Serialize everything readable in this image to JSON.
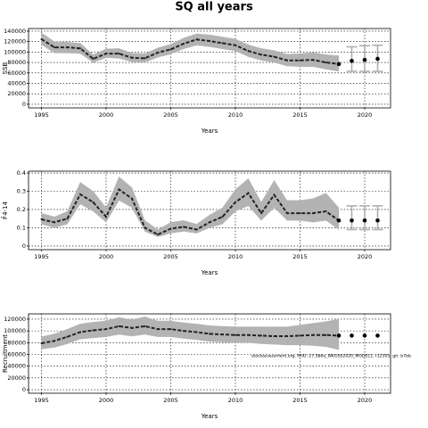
{
  "chart_data": [
    {
      "type": "line",
      "title": "SQ all years",
      "xlabel": "Years",
      "ylabel": "SSB",
      "x": [
        1995,
        1996,
        1997,
        1998,
        1999,
        2000,
        2001,
        2002,
        2003,
        2004,
        2005,
        2006,
        2007,
        2008,
        2009,
        2010,
        2011,
        2012,
        2013,
        2014,
        2015,
        2016,
        2017,
        2018,
        2019,
        2020,
        2021
      ],
      "xlim": [
        1994,
        2022
      ],
      "xticks": [
        1995,
        2000,
        2005,
        2010,
        2015,
        2020
      ],
      "ylim": [
        -7000,
        145000
      ],
      "yticks": [
        0,
        20000,
        40000,
        60000,
        80000,
        100000,
        120000,
        140000
      ],
      "grid": true,
      "series": [
        {
          "mark": "line",
          "color": "#222222",
          "band_color": "#b3b3b3",
          "values": [
            124600,
            109000,
            109000,
            107000,
            87000,
            97000,
            97000,
            89000,
            88000,
            99000,
            105000,
            116000,
            124000,
            121000,
            117000,
            113000,
            102000,
            95000,
            91000,
            84000,
            84000,
            85000,
            80000,
            77000,
            null,
            null,
            null
          ],
          "upper": [
            137000,
            120000,
            119000,
            117000,
            95000,
            106000,
            107000,
            98000,
            97000,
            108000,
            115000,
            127000,
            135000,
            133000,
            129000,
            125000,
            114000,
            107000,
            103000,
            96000,
            97000,
            99000,
            95000,
            93000,
            null,
            null,
            null
          ],
          "lower": [
            114000,
            98000,
            98000,
            97000,
            80000,
            89000,
            88000,
            81000,
            80000,
            90000,
            96000,
            106000,
            113000,
            110000,
            106000,
            102000,
            91000,
            84000,
            80000,
            73000,
            72000,
            72000,
            67000,
            63000,
            null,
            null,
            null
          ]
        },
        {
          "mark": "points",
          "color": "#000000",
          "band_color": "#aaaaaa",
          "values": [
            null,
            null,
            null,
            null,
            null,
            null,
            null,
            null,
            null,
            null,
            null,
            null,
            null,
            null,
            null,
            null,
            null,
            null,
            null,
            null,
            null,
            null,
            null,
            77000,
            83000,
            85000,
            87000
          ],
          "upper": [
            null,
            null,
            null,
            null,
            null,
            null,
            null,
            null,
            null,
            null,
            null,
            null,
            null,
            null,
            null,
            null,
            null,
            null,
            null,
            null,
            null,
            null,
            null,
            null,
            110000,
            112000,
            113000
          ],
          "lower": [
            null,
            null,
            null,
            null,
            null,
            null,
            null,
            null,
            null,
            null,
            null,
            null,
            null,
            null,
            null,
            null,
            null,
            null,
            null,
            null,
            null,
            null,
            null,
            null,
            63000,
            63000,
            63000
          ]
        }
      ]
    },
    {
      "type": "line",
      "xlabel": "Years",
      "ylabel": "F̄4-14",
      "x": [
        1995,
        1996,
        1997,
        1998,
        1999,
        2000,
        2001,
        2002,
        2003,
        2004,
        2005,
        2006,
        2007,
        2008,
        2009,
        2010,
        2011,
        2012,
        2013,
        2014,
        2015,
        2016,
        2017,
        2018,
        2019,
        2020,
        2021
      ],
      "xlim": [
        1994,
        2022
      ],
      "xticks": [
        1995,
        2000,
        2005,
        2010,
        2015,
        2020
      ],
      "ylim": [
        -0.02,
        0.41
      ],
      "yticks": [
        0,
        0.1,
        0.2,
        0.3,
        0.4
      ],
      "grid": true,
      "series": [
        {
          "mark": "line",
          "color": "#222222",
          "band_color": "#b3b3b3",
          "values": [
            0.146,
            0.13,
            0.15,
            0.283,
            0.24,
            0.16,
            0.31,
            0.26,
            0.1,
            0.063,
            0.095,
            0.105,
            0.09,
            0.13,
            0.16,
            0.24,
            0.29,
            0.18,
            0.28,
            0.18,
            0.18,
            0.18,
            0.19,
            0.14,
            null,
            null,
            null
          ],
          "upper": [
            0.18,
            0.16,
            0.19,
            0.35,
            0.3,
            0.21,
            0.38,
            0.32,
            0.14,
            0.09,
            0.13,
            0.14,
            0.12,
            0.17,
            0.21,
            0.31,
            0.37,
            0.24,
            0.36,
            0.25,
            0.25,
            0.26,
            0.29,
            0.21,
            null,
            null,
            null
          ],
          "lower": [
            0.12,
            0.1,
            0.12,
            0.23,
            0.19,
            0.13,
            0.25,
            0.21,
            0.08,
            0.05,
            0.07,
            0.08,
            0.07,
            0.1,
            0.12,
            0.19,
            0.22,
            0.14,
            0.21,
            0.14,
            0.14,
            0.13,
            0.14,
            0.09,
            null,
            null,
            null
          ]
        },
        {
          "mark": "points",
          "color": "#000000",
          "band_color": "#aaaaaa",
          "values": [
            null,
            null,
            null,
            null,
            null,
            null,
            null,
            null,
            null,
            null,
            null,
            null,
            null,
            null,
            null,
            null,
            null,
            null,
            null,
            null,
            null,
            null,
            null,
            0.14,
            0.14,
            0.14,
            0.14
          ],
          "upper": [
            null,
            null,
            null,
            null,
            null,
            null,
            null,
            null,
            null,
            null,
            null,
            null,
            null,
            null,
            null,
            null,
            null,
            null,
            null,
            null,
            null,
            null,
            null,
            null,
            0.22,
            0.22,
            0.22
          ],
          "lower": [
            null,
            null,
            null,
            null,
            null,
            null,
            null,
            null,
            null,
            null,
            null,
            null,
            null,
            null,
            null,
            null,
            null,
            null,
            null,
            null,
            null,
            null,
            null,
            null,
            0.09,
            0.09,
            0.09
          ]
        }
      ]
    },
    {
      "type": "line",
      "xlabel": "Years",
      "ylabel": "Recruitment",
      "annotation": "stockassessment.org, RHU: 27.5b6a_WKGSS2020_MODEL1, r12305, git: b7bb",
      "x": [
        1995,
        1996,
        1997,
        1998,
        1999,
        2000,
        2001,
        2002,
        2003,
        2004,
        2005,
        2006,
        2007,
        2008,
        2009,
        2010,
        2011,
        2012,
        2013,
        2014,
        2015,
        2016,
        2017,
        2018,
        2019,
        2020,
        2021
      ],
      "xlim": [
        1994,
        2022
      ],
      "xticks": [
        1995,
        2000,
        2005,
        2010,
        2015,
        2020
      ],
      "ylim": [
        -6000,
        129000
      ],
      "yticks": [
        0,
        20000,
        40000,
        60000,
        80000,
        100000,
        120000
      ],
      "grid": true,
      "series": [
        {
          "mark": "line",
          "color": "#222222",
          "band_color": "#b3b3b3",
          "values": [
            79000,
            83000,
            90000,
            98000,
            101000,
            103000,
            108000,
            105000,
            108000,
            103000,
            103000,
            100000,
            98000,
            95000,
            94000,
            93000,
            93000,
            92000,
            91000,
            91000,
            92000,
            93000,
            93000,
            92000,
            null,
            null,
            null
          ],
          "upper": [
            90000,
            95000,
            103000,
            112000,
            115000,
            117000,
            123000,
            119000,
            124000,
            117000,
            117000,
            114000,
            112000,
            109000,
            108000,
            107000,
            107000,
            107000,
            107000,
            107000,
            110000,
            113000,
            116000,
            120000,
            null,
            null,
            null
          ],
          "lower": [
            69000,
            72000,
            78000,
            86000,
            88000,
            90000,
            94000,
            91000,
            94000,
            90000,
            90000,
            87000,
            85000,
            82000,
            81000,
            80000,
            80000,
            78000,
            77000,
            76000,
            76000,
            75000,
            73000,
            68000,
            null,
            null,
            null
          ]
        },
        {
          "mark": "points",
          "color": "#000000",
          "values": [
            null,
            null,
            null,
            null,
            null,
            null,
            null,
            null,
            null,
            null,
            null,
            null,
            null,
            null,
            null,
            null,
            null,
            null,
            null,
            null,
            null,
            null,
            null,
            92000,
            92000,
            92000,
            92000
          ]
        }
      ]
    }
  ]
}
